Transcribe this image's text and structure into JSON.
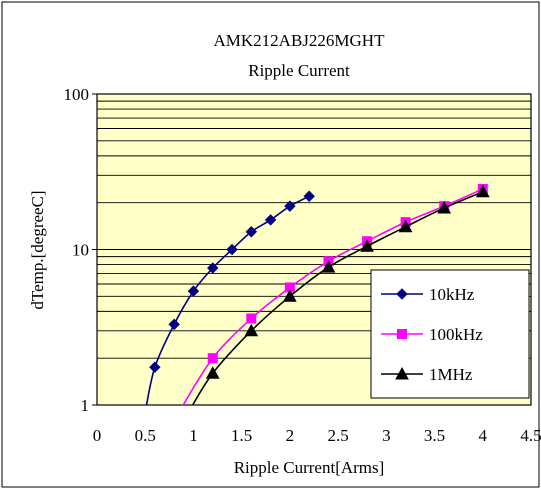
{
  "chart_data": {
    "type": "line",
    "title": "AMK212ABJ226MGHT",
    "subtitle": "Ripple Current",
    "xlabel": "Ripple Current[Arms]",
    "ylabel": "dTemp.[degreeC]",
    "x_scale": "linear",
    "y_scale": "log",
    "xlim": [
      0,
      4.5
    ],
    "ylim": [
      1,
      100
    ],
    "x_ticks": [
      "0",
      "0.5",
      "1",
      "1.5",
      "2",
      "2.5",
      "3",
      "3.5",
      "4",
      "4.5"
    ],
    "y_ticks": [
      "1",
      "10",
      "100"
    ],
    "grid": true,
    "legend_position": "right",
    "colors": {
      "plot_background": "#FFFFC8",
      "gridline": "#000000",
      "series_10kHz": "#000080",
      "series_100kHz": "#FF00FF",
      "series_1MHz": "#000000"
    },
    "series": [
      {
        "name": "10kHz",
        "marker": "diamond",
        "x": [
          0.6,
          0.8,
          1.0,
          1.2,
          1.4,
          1.6,
          1.8,
          2.0,
          2.2
        ],
        "y": [
          1.75,
          3.3,
          5.4,
          7.6,
          10.0,
          13.0,
          15.5,
          19.0,
          22.0
        ],
        "curve_low": [
          0.5,
          0.9
        ]
      },
      {
        "name": "100kHz",
        "marker": "square",
        "x": [
          1.2,
          1.6,
          2.0,
          2.4,
          2.8,
          3.2,
          3.6,
          4.0
        ],
        "y": [
          2.0,
          3.6,
          5.7,
          8.4,
          11.3,
          15.0,
          19.0,
          24.5
        ],
        "curve_low": [
          0.85,
          0.9
        ]
      },
      {
        "name": "1MHz",
        "marker": "triangle",
        "x": [
          1.2,
          1.6,
          2.0,
          2.4,
          2.8,
          3.2,
          3.6,
          4.0
        ],
        "y": [
          1.6,
          3.0,
          5.0,
          7.7,
          10.5,
          14.0,
          18.5,
          23.5
        ],
        "curve_low": [
          0.95,
          0.9
        ]
      }
    ]
  }
}
